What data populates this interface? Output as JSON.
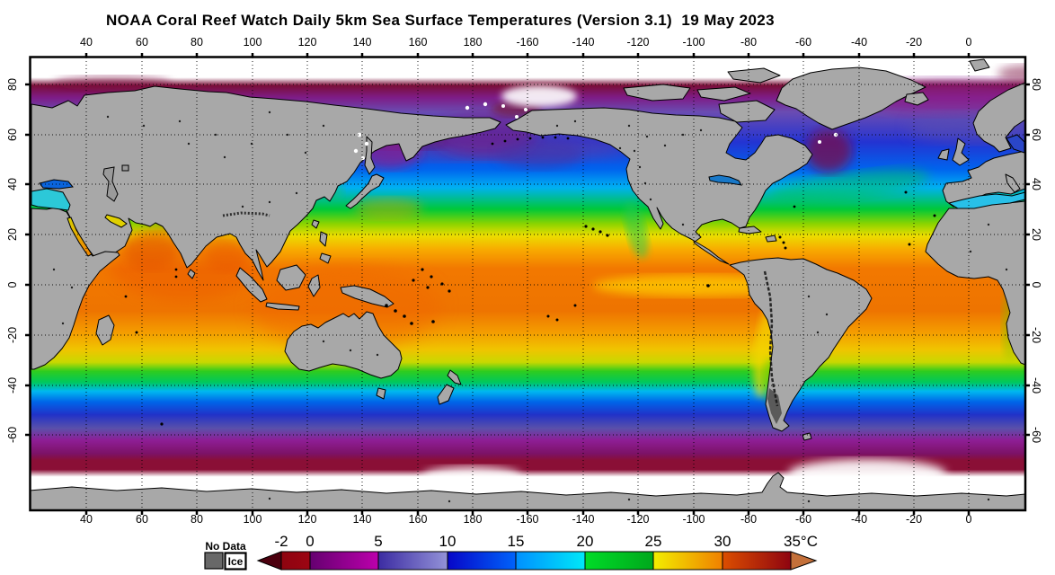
{
  "title": "NOAA Coral Reef Watch Daily 5km Sea Surface Temperatures (Version 3.1)  19 May 2023",
  "axes": {
    "lon_labels": [
      "40",
      "60",
      "80",
      "100",
      "120",
      "140",
      "160",
      "180",
      "-160",
      "-140",
      "-120",
      "-100",
      "-80",
      "-60",
      "-40",
      "-20",
      "0"
    ],
    "lat_labels": [
      "80",
      "60",
      "40",
      "20",
      "0",
      "-20",
      "-40",
      "-60"
    ]
  },
  "map": {
    "projection": "equirectangular, Pacific-centered",
    "land_color": "#a8a8a8",
    "coast_color": "#000000",
    "ice_color": "#ffffff",
    "sst_latitude_profile_c": [
      {
        "lat": "70N",
        "sst": "ice/-1"
      },
      {
        "lat": "60N",
        "sst": 3
      },
      {
        "lat": "50N",
        "sst": 8
      },
      {
        "lat": "40N",
        "sst": 14
      },
      {
        "lat": "30N",
        "sst": 21
      },
      {
        "lat": "20N",
        "sst": 26
      },
      {
        "lat": "0",
        "sst": 29
      },
      {
        "lat": "20S",
        "sst": 26
      },
      {
        "lat": "30S",
        "sst": 21
      },
      {
        "lat": "40S",
        "sst": 13
      },
      {
        "lat": "50S",
        "sst": 6
      },
      {
        "lat": "60S",
        "sst": 0
      },
      {
        "lat": "68S",
        "sst": "ice"
      }
    ]
  },
  "legend": {
    "no_data_label": "No Data",
    "ice_label": "Ice",
    "no_data_color": "#686868",
    "ice_color": "#ffffff",
    "unit": "°C",
    "tick_labels": [
      "-2",
      "0",
      "5",
      "10",
      "15",
      "20",
      "25",
      "30",
      "35°C"
    ],
    "segments": [
      {
        "from": -2,
        "to": 0,
        "c1": "#8e0410",
        "c2": "#9c0512"
      },
      {
        "from": 0,
        "to": 5,
        "c1": "#650070",
        "c2": "#bc00ac"
      },
      {
        "from": 5,
        "to": 10,
        "c1": "#3c2ca2",
        "c2": "#9392d8"
      },
      {
        "from": 10,
        "to": 15,
        "c1": "#0706c8",
        "c2": "#0063fa"
      },
      {
        "from": 15,
        "to": 20,
        "c1": "#0090ff",
        "c2": "#00e8f8"
      },
      {
        "from": 20,
        "to": 25,
        "c1": "#00dc28",
        "c2": "#00a81c"
      },
      {
        "from": 25,
        "to": 30,
        "c1": "#f2ee00",
        "c2": "#f08000"
      },
      {
        "from": 30,
        "to": 35,
        "c1": "#dc4e00",
        "c2": "#8e0410"
      }
    ],
    "arrow_left_color": "#4c000e",
    "arrow_right_color": "#c4703a"
  }
}
